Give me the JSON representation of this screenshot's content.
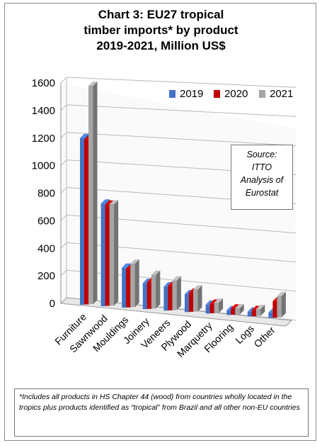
{
  "chart_data": {
    "type": "bar",
    "title_lines": [
      "Chart 3: EU27 tropical",
      "timber imports* by product",
      "2019-2021, Million US$"
    ],
    "categories": [
      "Furniture",
      "Sawnwood",
      "Mouldings",
      "Joinery",
      "Veneers",
      "Plywood",
      "Marquetry",
      "Flooring",
      "Logs",
      "Other"
    ],
    "series": [
      {
        "name": "2019",
        "color": "#4472c4",
        "values": [
          1210,
          745,
          290,
          190,
          175,
          130,
          65,
          35,
          35,
          40
        ]
      },
      {
        "name": "2020",
        "color": "#c00000",
        "values": [
          1195,
          735,
          280,
          195,
          180,
          140,
          70,
          45,
          45,
          120
        ]
      },
      {
        "name": "2021",
        "color": "#a5a5a5",
        "values": [
          1585,
          735,
          315,
          245,
          215,
          160,
          75,
          45,
          50,
          155
        ]
      }
    ],
    "yticks": [
      0,
      200,
      400,
      600,
      800,
      1000,
      1200,
      1400,
      1600
    ],
    "ylim": [
      0,
      1600
    ],
    "grid": true,
    "legend_position": "top-right"
  },
  "source_box": [
    "Source:",
    "ITTO",
    "Analysis of",
    "Eurostat"
  ],
  "footnote": "*Includes all products in HS Chapter 44 (wood) from countries wholly located in the tropics plus products identified as “tropical” from Brazil and all other non-EU countries"
}
